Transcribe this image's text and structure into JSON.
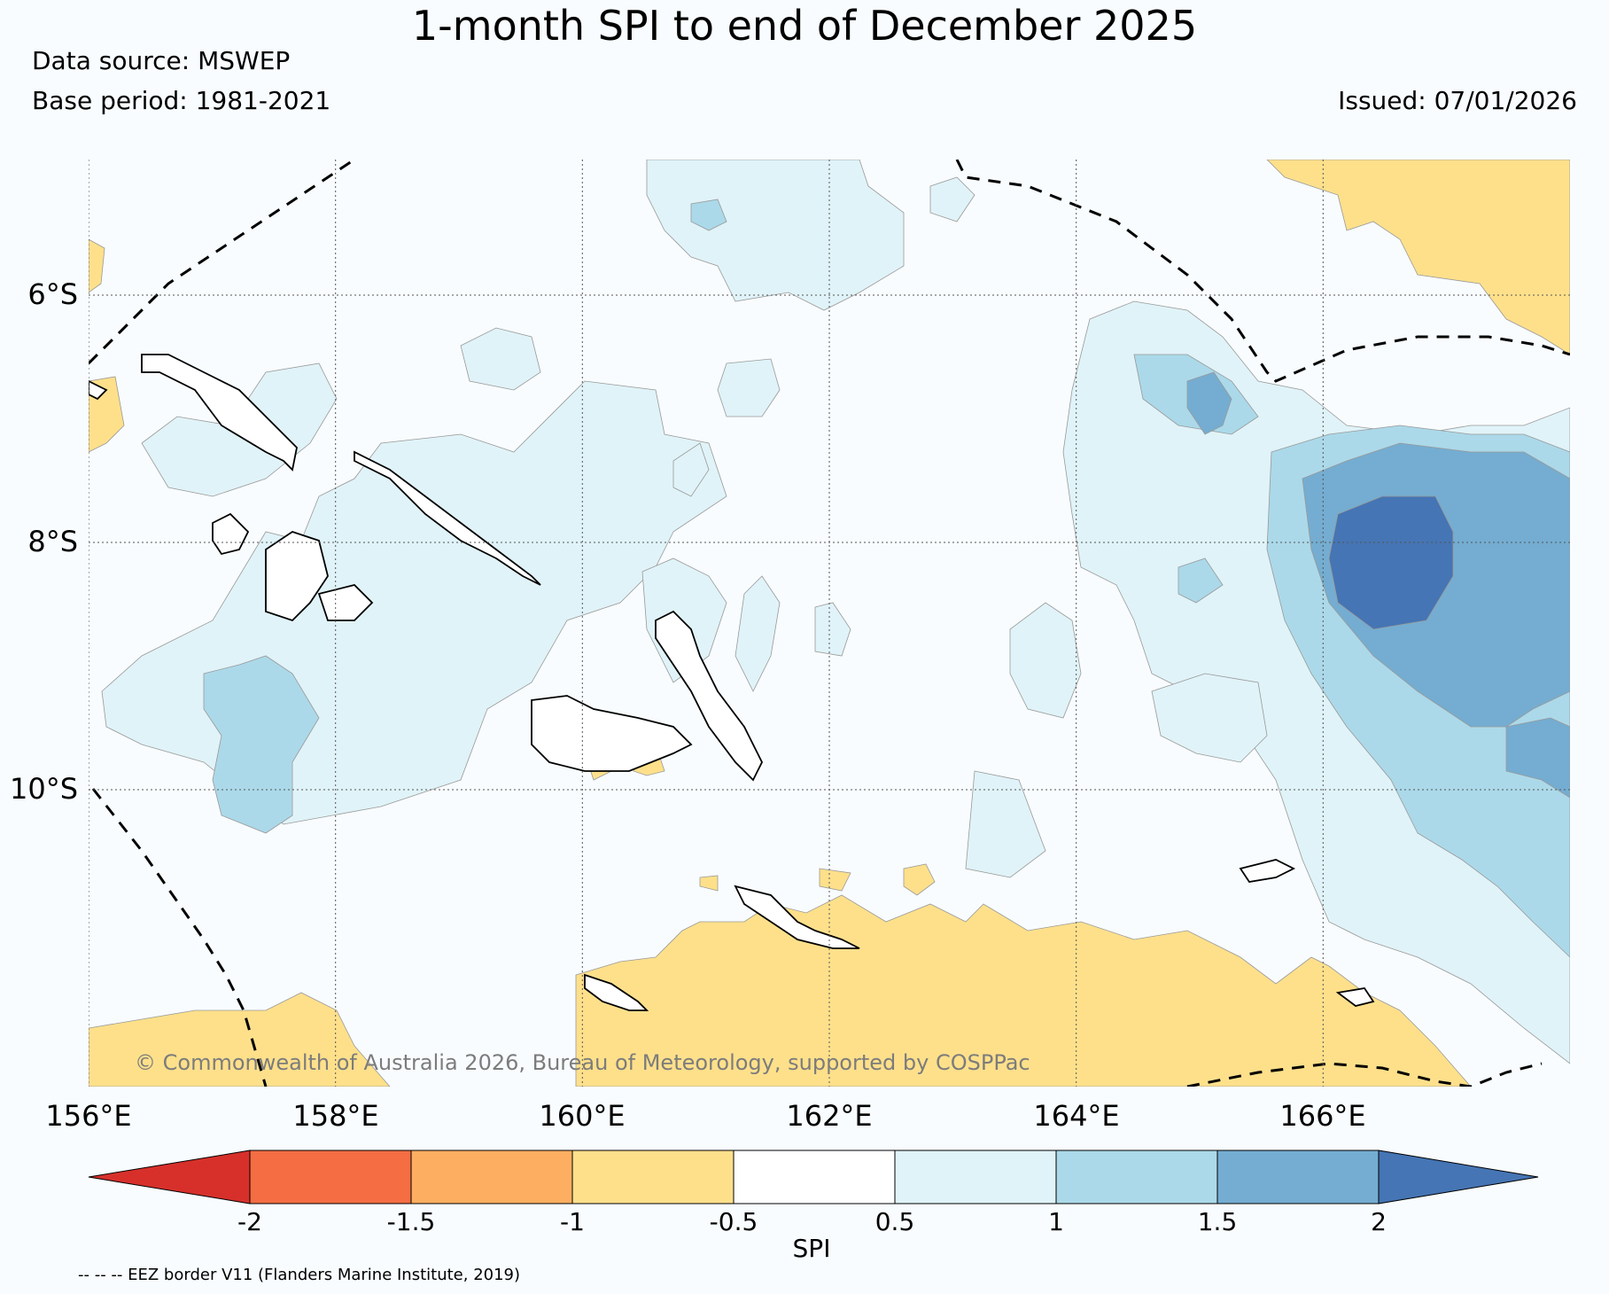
{
  "title": "1-month SPI to end of December 2025",
  "source": "Data source: MSWEP",
  "base_period": "Base period: 1981-2021",
  "issued": "Issued: 07/01/2026",
  "copyright": "© Commonwealth of Australia 2026, Bureau of Meteorology, supported by COSPPac",
  "eez_note": "-- -- -- EEZ border V11 (Flanders Marine Institute, 2019)",
  "map": {
    "lon_range": [
      156,
      168
    ],
    "lat_range": [
      -12.4,
      -4.9
    ],
    "lat_ticks": [
      "6°S",
      "8°S",
      "10°S"
    ],
    "lon_ticks": [
      "156°E",
      "158°E",
      "160°E",
      "162°E",
      "164°E",
      "166°E"
    ]
  },
  "colorbar": {
    "label": "SPI",
    "ticks": [
      "-2",
      "-1.5",
      "-1",
      "-0.5",
      "0.5",
      "1",
      "1.5",
      "2"
    ],
    "under_color": "#d7302b",
    "colors": [
      "#f46d43",
      "#fdae61",
      "#fee08b",
      "#ffffff",
      "#e0f3f8",
      "#abd9e9",
      "#74add1"
    ],
    "over_color": "#4575b4"
  }
}
